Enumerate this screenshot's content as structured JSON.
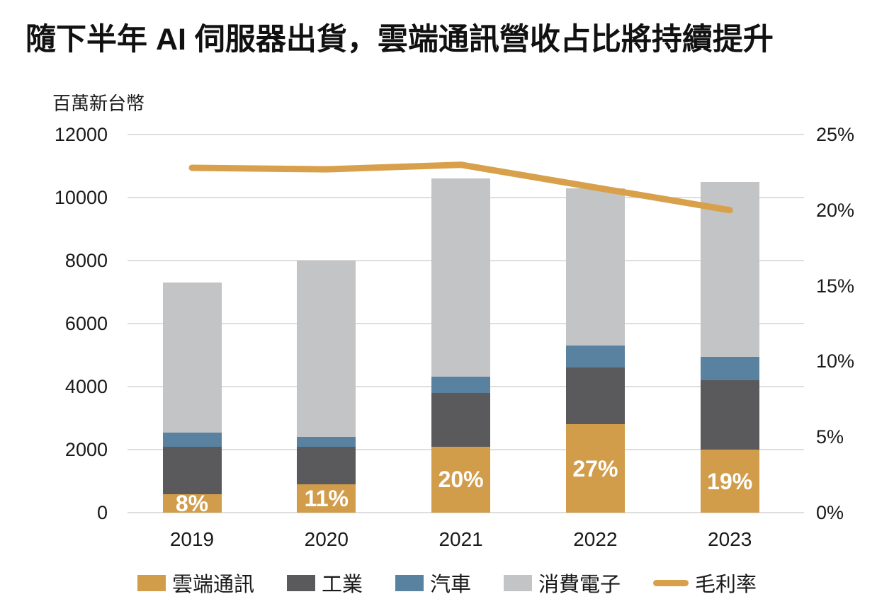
{
  "title": "隨下半年 AI 伺服器出貨，雲端通訊營收占比將持續提升",
  "chart_data": {
    "type": "bar",
    "subtype": "stacked-bars-with-line-overlay",
    "unit_label": "百萬新台幣",
    "categories": [
      "2019",
      "2020",
      "2021",
      "2022",
      "2023"
    ],
    "series": [
      {
        "name": "雲端通訊",
        "color": "#D19D4B",
        "values": [
          590,
          900,
          2100,
          2800,
          2000
        ]
      },
      {
        "name": "工業",
        "color": "#5A5A5C",
        "values": [
          1510,
          1200,
          1700,
          1800,
          2200
        ]
      },
      {
        "name": "汽車",
        "color": "#5982A0",
        "values": [
          450,
          300,
          520,
          700,
          750
        ]
      },
      {
        "name": "消費電子",
        "color": "#C3C4C6",
        "values": [
          4750,
          5600,
          6280,
          5000,
          5550
        ]
      }
    ],
    "bar_totals": [
      7300,
      8000,
      10600,
      10300,
      10500
    ],
    "bar_labels": [
      "8%",
      "11%",
      "20%",
      "27%",
      "19%"
    ],
    "line_series": {
      "name": "毛利率",
      "color": "#D8A04A",
      "values": [
        22.8,
        22.7,
        23.0,
        21.5,
        20.0
      ]
    },
    "left_axis": {
      "title": "百萬新台幣",
      "min": 0,
      "max": 12000,
      "ticks": [
        "12000",
        "10000",
        "8000",
        "6000",
        "4000",
        "2000",
        "0"
      ]
    },
    "right_axis": {
      "min": 0,
      "max": 25,
      "ticks": [
        "25%",
        "20%",
        "15%",
        "10%",
        "5%",
        "0%"
      ]
    },
    "grid": true,
    "legend_position": "bottom",
    "legend_entries": [
      "雲端通訊",
      "工業",
      "汽車",
      "消費電子",
      "毛利率"
    ]
  }
}
